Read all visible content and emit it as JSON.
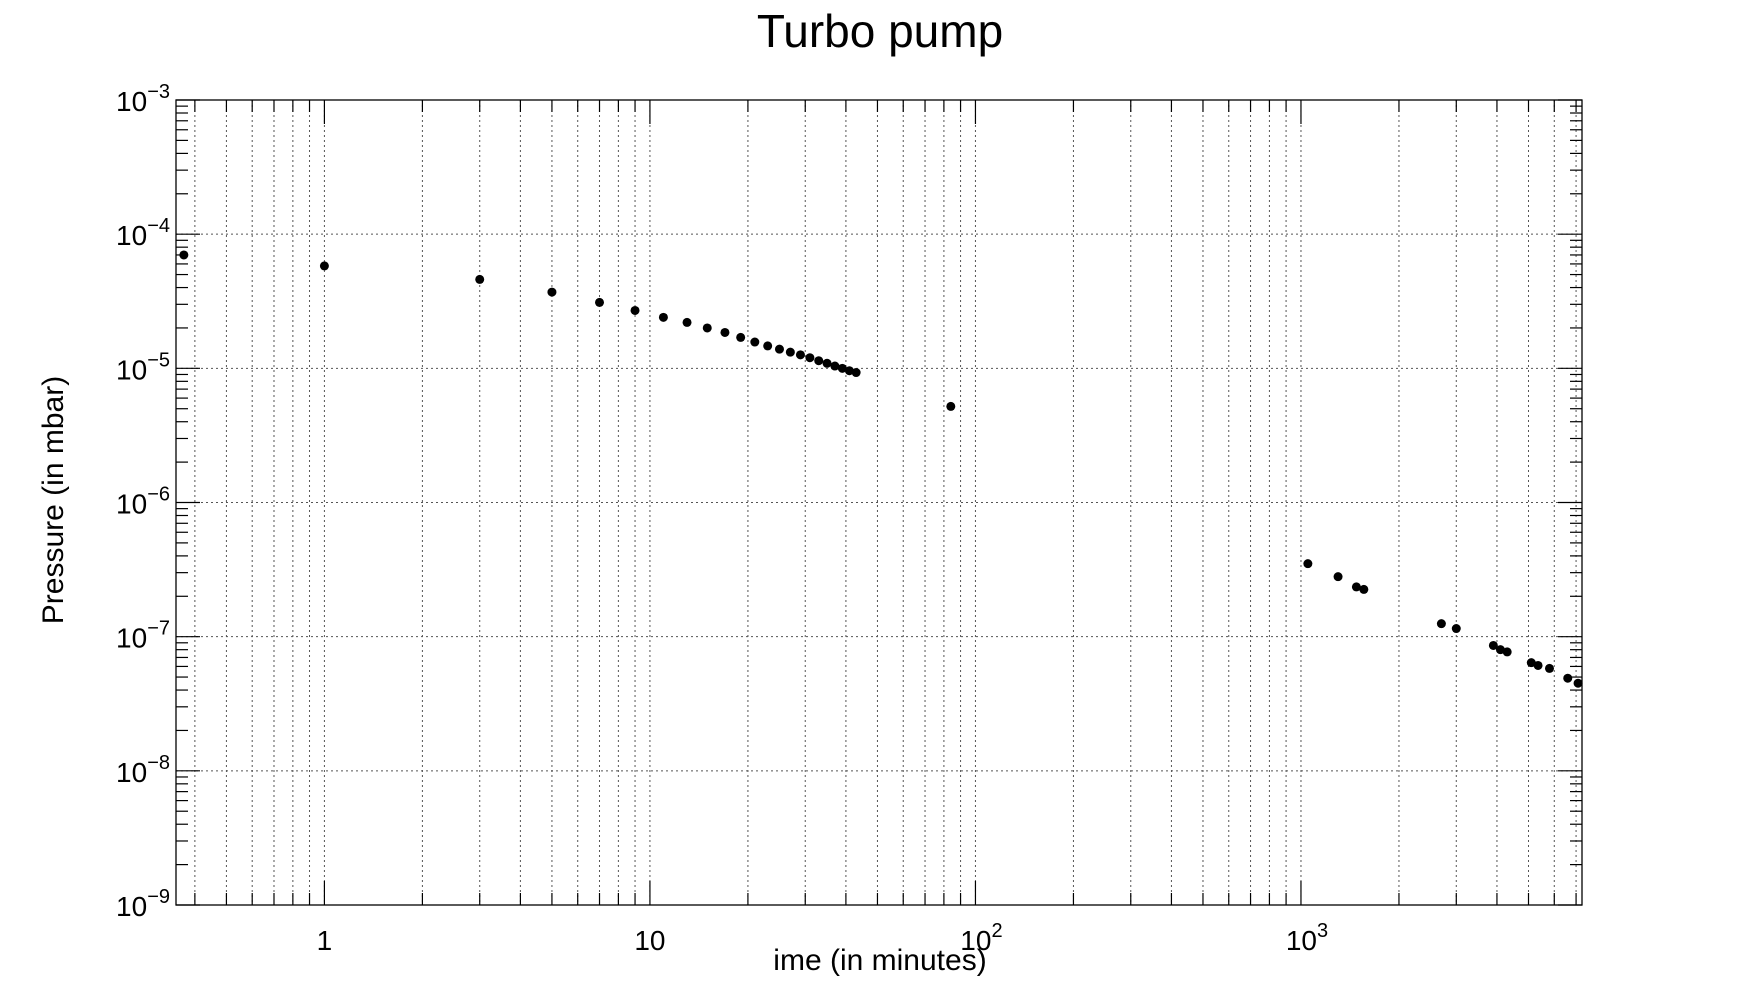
{
  "chart_data": {
    "type": "scatter",
    "title": "Turbo pump",
    "xlabel": "ime (in minutes)",
    "ylabel": "Pressure (in mbar)",
    "x_scale": "log",
    "y_scale": "log",
    "xlim": [
      0.35,
      7300
    ],
    "ylim": [
      1e-09,
      0.001
    ],
    "grid": true,
    "marker_color": "#000000",
    "x_tick_labels": [
      {
        "value": 1,
        "base": "1",
        "exp": ""
      },
      {
        "value": 10,
        "base": "10",
        "exp": ""
      },
      {
        "value": 100,
        "base": "10",
        "exp": "2"
      },
      {
        "value": 1000,
        "base": "10",
        "exp": "3"
      }
    ],
    "y_tick_labels": [
      {
        "value": 1e-09,
        "base": "10",
        "exp": "−9"
      },
      {
        "value": 1e-08,
        "base": "10",
        "exp": "−8"
      },
      {
        "value": 1e-07,
        "base": "10",
        "exp": "−7"
      },
      {
        "value": 1e-06,
        "base": "10",
        "exp": "−6"
      },
      {
        "value": 1e-05,
        "base": "10",
        "exp": "−5"
      },
      {
        "value": 0.0001,
        "base": "10",
        "exp": "−4"
      },
      {
        "value": 0.001,
        "base": "10",
        "exp": "−3"
      }
    ],
    "points": [
      {
        "x": 0.37,
        "y": 7e-05
      },
      {
        "x": 1.0,
        "y": 5.8e-05
      },
      {
        "x": 3.0,
        "y": 4.6e-05
      },
      {
        "x": 5.0,
        "y": 3.7e-05
      },
      {
        "x": 7.0,
        "y": 3.1e-05
      },
      {
        "x": 9.0,
        "y": 2.7e-05
      },
      {
        "x": 11.0,
        "y": 2.4e-05
      },
      {
        "x": 13.0,
        "y": 2.2e-05
      },
      {
        "x": 15.0,
        "y": 2e-05
      },
      {
        "x": 17.0,
        "y": 1.85e-05
      },
      {
        "x": 19.0,
        "y": 1.7e-05
      },
      {
        "x": 21.0,
        "y": 1.57e-05
      },
      {
        "x": 23.0,
        "y": 1.47e-05
      },
      {
        "x": 25.0,
        "y": 1.39e-05
      },
      {
        "x": 27.0,
        "y": 1.32e-05
      },
      {
        "x": 29.0,
        "y": 1.26e-05
      },
      {
        "x": 31.0,
        "y": 1.2e-05
      },
      {
        "x": 33.0,
        "y": 1.14e-05
      },
      {
        "x": 35.0,
        "y": 1.09e-05
      },
      {
        "x": 37.0,
        "y": 1.04e-05
      },
      {
        "x": 39.0,
        "y": 1e-05
      },
      {
        "x": 41.0,
        "y": 9.6e-06
      },
      {
        "x": 43.0,
        "y": 9.3e-06
      },
      {
        "x": 84.0,
        "y": 5.2e-06
      },
      {
        "x": 1050,
        "y": 3.5e-07
      },
      {
        "x": 1300,
        "y": 2.8e-07
      },
      {
        "x": 1480,
        "y": 2.35e-07
      },
      {
        "x": 1560,
        "y": 2.25e-07
      },
      {
        "x": 2700,
        "y": 1.25e-07
      },
      {
        "x": 3000,
        "y": 1.15e-07
      },
      {
        "x": 3900,
        "y": 8.6e-08
      },
      {
        "x": 4100,
        "y": 8e-08
      },
      {
        "x": 4300,
        "y": 7.7e-08
      },
      {
        "x": 5100,
        "y": 6.4e-08
      },
      {
        "x": 5350,
        "y": 6.1e-08
      },
      {
        "x": 5800,
        "y": 5.8e-08
      },
      {
        "x": 6600,
        "y": 4.9e-08
      },
      {
        "x": 7100,
        "y": 4.5e-08
      }
    ]
  }
}
